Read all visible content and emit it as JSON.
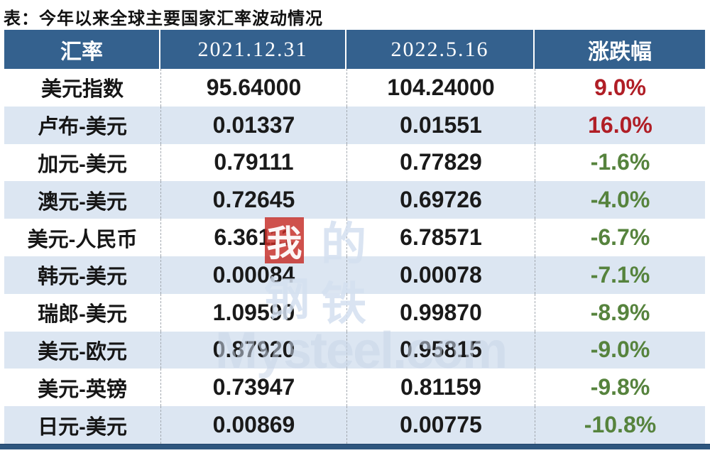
{
  "page": {
    "title": "表：今年以来全球主要国家汇率波动情况"
  },
  "table": {
    "columns": [
      "汇率",
      "2021.12.31",
      "2022.5.16",
      "涨跌幅"
    ],
    "rows": [
      {
        "pair": "美元指数",
        "v_2021_12_31": "95.64000",
        "v_2022_5_16": "104.24000",
        "change": "9.0%",
        "direction": "up"
      },
      {
        "pair": "卢布-美元",
        "v_2021_12_31": "0.01337",
        "v_2022_5_16": "0.01551",
        "change": "16.0%",
        "direction": "up"
      },
      {
        "pair": "加元-美元",
        "v_2021_12_31": "0.79111",
        "v_2022_5_16": "0.77829",
        "change": "-1.6%",
        "direction": "down"
      },
      {
        "pair": "澳元-美元",
        "v_2021_12_31": "0.72645",
        "v_2022_5_16": "0.69726",
        "change": "-4.0%",
        "direction": "down"
      },
      {
        "pair": "美元-人民币",
        "v_2021_12_31": "6.36111",
        "v_2022_5_16": "6.78571",
        "change": "-6.7%",
        "direction": "down"
      },
      {
        "pair": "韩元-美元",
        "v_2021_12_31": "0.00084",
        "v_2022_5_16": "0.00078",
        "change": "-7.1%",
        "direction": "down"
      },
      {
        "pair": "瑞郎-美元",
        "v_2021_12_31": "1.09590",
        "v_2022_5_16": "0.99870",
        "change": "-8.9%",
        "direction": "down"
      },
      {
        "pair": "美元-欧元",
        "v_2021_12_31": "0.87920",
        "v_2022_5_16": "0.95815",
        "change": "-9.0%",
        "direction": "down"
      },
      {
        "pair": "美元-英镑",
        "v_2021_12_31": "0.73947",
        "v_2022_5_16": "0.81159",
        "change": "-9.8%",
        "direction": "down"
      },
      {
        "pair": "日元-美元",
        "v_2021_12_31": "0.00869",
        "v_2022_5_16": "0.00775",
        "change": "-10.8%",
        "direction": "down"
      }
    ]
  },
  "chart_data": {
    "type": "table",
    "title": "表：今年以来全球主要国家汇率波动情况",
    "columns": [
      "汇率",
      "2021.12.31",
      "2022.5.16",
      "涨跌幅"
    ],
    "rows": [
      [
        "美元指数",
        95.64,
        104.24,
        "9.0%"
      ],
      [
        "卢布-美元",
        0.01337,
        0.01551,
        "16.0%"
      ],
      [
        "加元-美元",
        0.79111,
        0.77829,
        "-1.6%"
      ],
      [
        "澳元-美元",
        0.72645,
        0.69726,
        "-4.0%"
      ],
      [
        "美元-人民币",
        6.36111,
        6.78571,
        "-6.7%"
      ],
      [
        "韩元-美元",
        0.00084,
        0.00078,
        "-7.1%"
      ],
      [
        "瑞郎-美元",
        1.0959,
        0.9987,
        "-8.9%"
      ],
      [
        "美元-欧元",
        0.8792,
        0.95815,
        "-9.0%"
      ],
      [
        "美元-英镑",
        0.73947,
        0.81159,
        "-9.8%"
      ],
      [
        "日元-美元",
        0.00869,
        0.00775,
        "-10.8%"
      ]
    ],
    "layout": {
      "alternating_row_shading": true,
      "column_dividers": "dashed",
      "legend": "none"
    }
  },
  "watermark": {
    "char_1": "我",
    "char_2": "的",
    "char_3": "钢",
    "char_4": "铁",
    "site": "Mysteel.com"
  },
  "colors": {
    "header_bg": "#34618E",
    "alt_row_bg": "#DCE6F2",
    "up_color": "#B01E26",
    "down_color": "#56833D",
    "bottom_bar": "#2E567E",
    "divider": "#A3A9B0"
  }
}
